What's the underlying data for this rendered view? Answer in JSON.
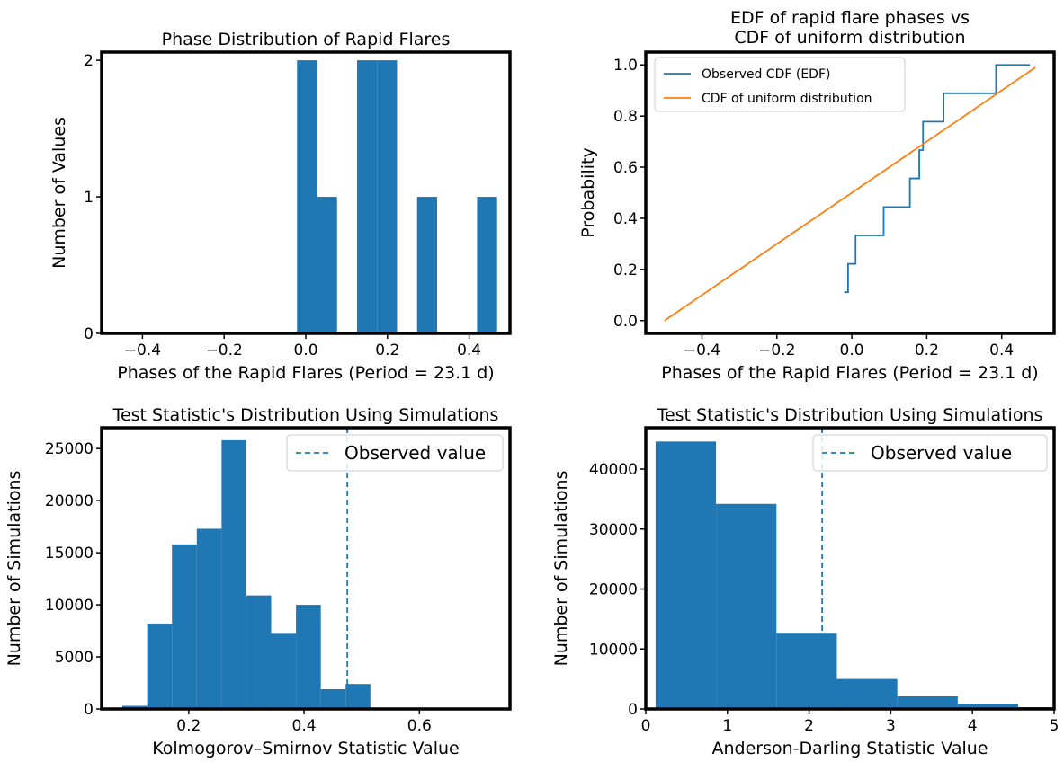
{
  "colors": {
    "bar": "#1f77b4",
    "edf": "#1f77b4",
    "uniform": "#ff7f0e",
    "observed_line": "#1f77b4",
    "frame": "#000000"
  },
  "chart_data": [
    {
      "id": "phase_hist",
      "type": "bar",
      "title": "Phase Distribution of Rapid Flares",
      "xlabel": "Phases of the Rapid Flares (Period = 23.1 d)",
      "ylabel": "Number of Values",
      "xlim": [
        -0.5,
        0.5
      ],
      "ylim": [
        0,
        2.06
      ],
      "xticks": [
        -0.4,
        -0.2,
        0.0,
        0.2,
        0.4
      ],
      "xticklabels": [
        "−0.4",
        "−0.2",
        "0.0",
        "0.2",
        "0.4"
      ],
      "yticks": [
        0,
        1,
        2
      ],
      "yticklabels": [
        "0",
        "1",
        "2"
      ],
      "bins": [
        {
          "x0": -0.0215,
          "x1": 0.0275,
          "value": 2
        },
        {
          "x0": 0.0275,
          "x1": 0.0765,
          "value": 1
        },
        {
          "x0": 0.1255,
          "x1": 0.1745,
          "value": 2
        },
        {
          "x0": 0.1745,
          "x1": 0.2235,
          "value": 2
        },
        {
          "x0": 0.2725,
          "x1": 0.3215,
          "value": 1
        },
        {
          "x0": 0.4195,
          "x1": 0.4685,
          "value": 1
        }
      ]
    },
    {
      "id": "edf_cdf",
      "type": "line",
      "title": "EDF of rapid flare phases vs\nCDF of uniform distribution",
      "xlabel": "Phases of the Rapid Flares (Period = 23.1 d)",
      "ylabel": "Probability",
      "xlim": [
        -0.55,
        0.54
      ],
      "ylim": [
        -0.05,
        1.05
      ],
      "xticks": [
        -0.4,
        -0.2,
        0.0,
        0.2,
        0.4
      ],
      "xticklabels": [
        "−0.4",
        "−0.2",
        "0.0",
        "0.2",
        "0.4"
      ],
      "yticks": [
        0.0,
        0.2,
        0.4,
        0.6,
        0.8,
        1.0
      ],
      "yticklabels": [
        "0.0",
        "0.2",
        "0.4",
        "0.6",
        "0.8",
        "1.0"
      ],
      "legend": {
        "position": "upper left",
        "entries": [
          "Observed CDF (EDF)",
          "CDF of uniform distribution"
        ]
      },
      "series": [
        {
          "name": "Observed CDF (EDF)",
          "step": "post",
          "x": [
            -0.02,
            -0.01,
            0.01,
            0.085,
            0.155,
            0.18,
            0.19,
            0.245,
            0.385,
            0.475
          ],
          "y": [
            0.111,
            0.222,
            0.333,
            0.444,
            0.556,
            0.667,
            0.778,
            0.889,
            1.0,
            1.0
          ]
        },
        {
          "name": "CDF of uniform distribution",
          "x": [
            -0.5,
            0.49
          ],
          "y": [
            0.0,
            0.99
          ]
        }
      ]
    },
    {
      "id": "ks_sim",
      "type": "bar",
      "title": "Test Statistic's Distribution Using Simulations",
      "xlabel": "Kolmogorov–Smirnov Statistic Value",
      "ylabel": "Number of Simulations",
      "xlim": [
        0.049,
        0.757
      ],
      "ylim": [
        0,
        27000
      ],
      "xticks": [
        0.2,
        0.4,
        0.6
      ],
      "xticklabels": [
        "0.2",
        "0.4",
        "0.6"
      ],
      "yticks": [
        0,
        5000,
        10000,
        15000,
        20000,
        25000
      ],
      "yticklabels": [
        "0",
        "5000",
        "10000",
        "15000",
        "20000",
        "25000"
      ],
      "observed_value": 0.475,
      "legend": {
        "position": "upper right",
        "entries": [
          "Observed value"
        ]
      },
      "bins": [
        {
          "x0": 0.085,
          "x1": 0.128,
          "value": 300
        },
        {
          "x0": 0.128,
          "x1": 0.171,
          "value": 8200
        },
        {
          "x0": 0.171,
          "x1": 0.214,
          "value": 15800
        },
        {
          "x0": 0.214,
          "x1": 0.257,
          "value": 17300
        },
        {
          "x0": 0.257,
          "x1": 0.3,
          "value": 25800
        },
        {
          "x0": 0.3,
          "x1": 0.343,
          "value": 10900
        },
        {
          "x0": 0.343,
          "x1": 0.386,
          "value": 7300
        },
        {
          "x0": 0.386,
          "x1": 0.429,
          "value": 10000
        },
        {
          "x0": 0.429,
          "x1": 0.472,
          "value": 1900
        },
        {
          "x0": 0.472,
          "x1": 0.515,
          "value": 2400
        },
        {
          "x0": 0.515,
          "x1": 0.558,
          "value": 50
        },
        {
          "x0": 0.558,
          "x1": 0.601,
          "value": 30
        },
        {
          "x0": 0.601,
          "x1": 0.644,
          "value": 20
        },
        {
          "x0": 0.644,
          "x1": 0.687,
          "value": 10
        },
        {
          "x0": 0.687,
          "x1": 0.73,
          "value": 5
        }
      ]
    },
    {
      "id": "ad_sim",
      "type": "bar",
      "title": "Test Statistic's Distribution Using Simulations",
      "xlabel": "Anderson-Darling Statistic Value",
      "ylabel": "Number of Simulations",
      "xlim": [
        0,
        5
      ],
      "ylim": [
        0,
        46900
      ],
      "xticks": [
        0,
        1,
        2,
        3,
        4,
        5
      ],
      "xticklabels": [
        "0",
        "1",
        "2",
        "3",
        "4",
        "5"
      ],
      "yticks": [
        0,
        10000,
        20000,
        30000,
        40000
      ],
      "yticklabels": [
        "0",
        "10000",
        "20000",
        "30000",
        "40000"
      ],
      "observed_value": 2.16,
      "legend": {
        "position": "upper right",
        "entries": [
          "Observed value"
        ]
      },
      "bins": [
        {
          "x0": 0.12,
          "x1": 0.86,
          "value": 44600
        },
        {
          "x0": 0.86,
          "x1": 1.6,
          "value": 34200
        },
        {
          "x0": 1.6,
          "x1": 2.34,
          "value": 12700
        },
        {
          "x0": 2.34,
          "x1": 3.08,
          "value": 5000
        },
        {
          "x0": 3.08,
          "x1": 3.82,
          "value": 2100
        },
        {
          "x0": 3.82,
          "x1": 4.56,
          "value": 800
        },
        {
          "x0": 4.56,
          "x1": 5.3,
          "value": 300
        }
      ]
    }
  ]
}
